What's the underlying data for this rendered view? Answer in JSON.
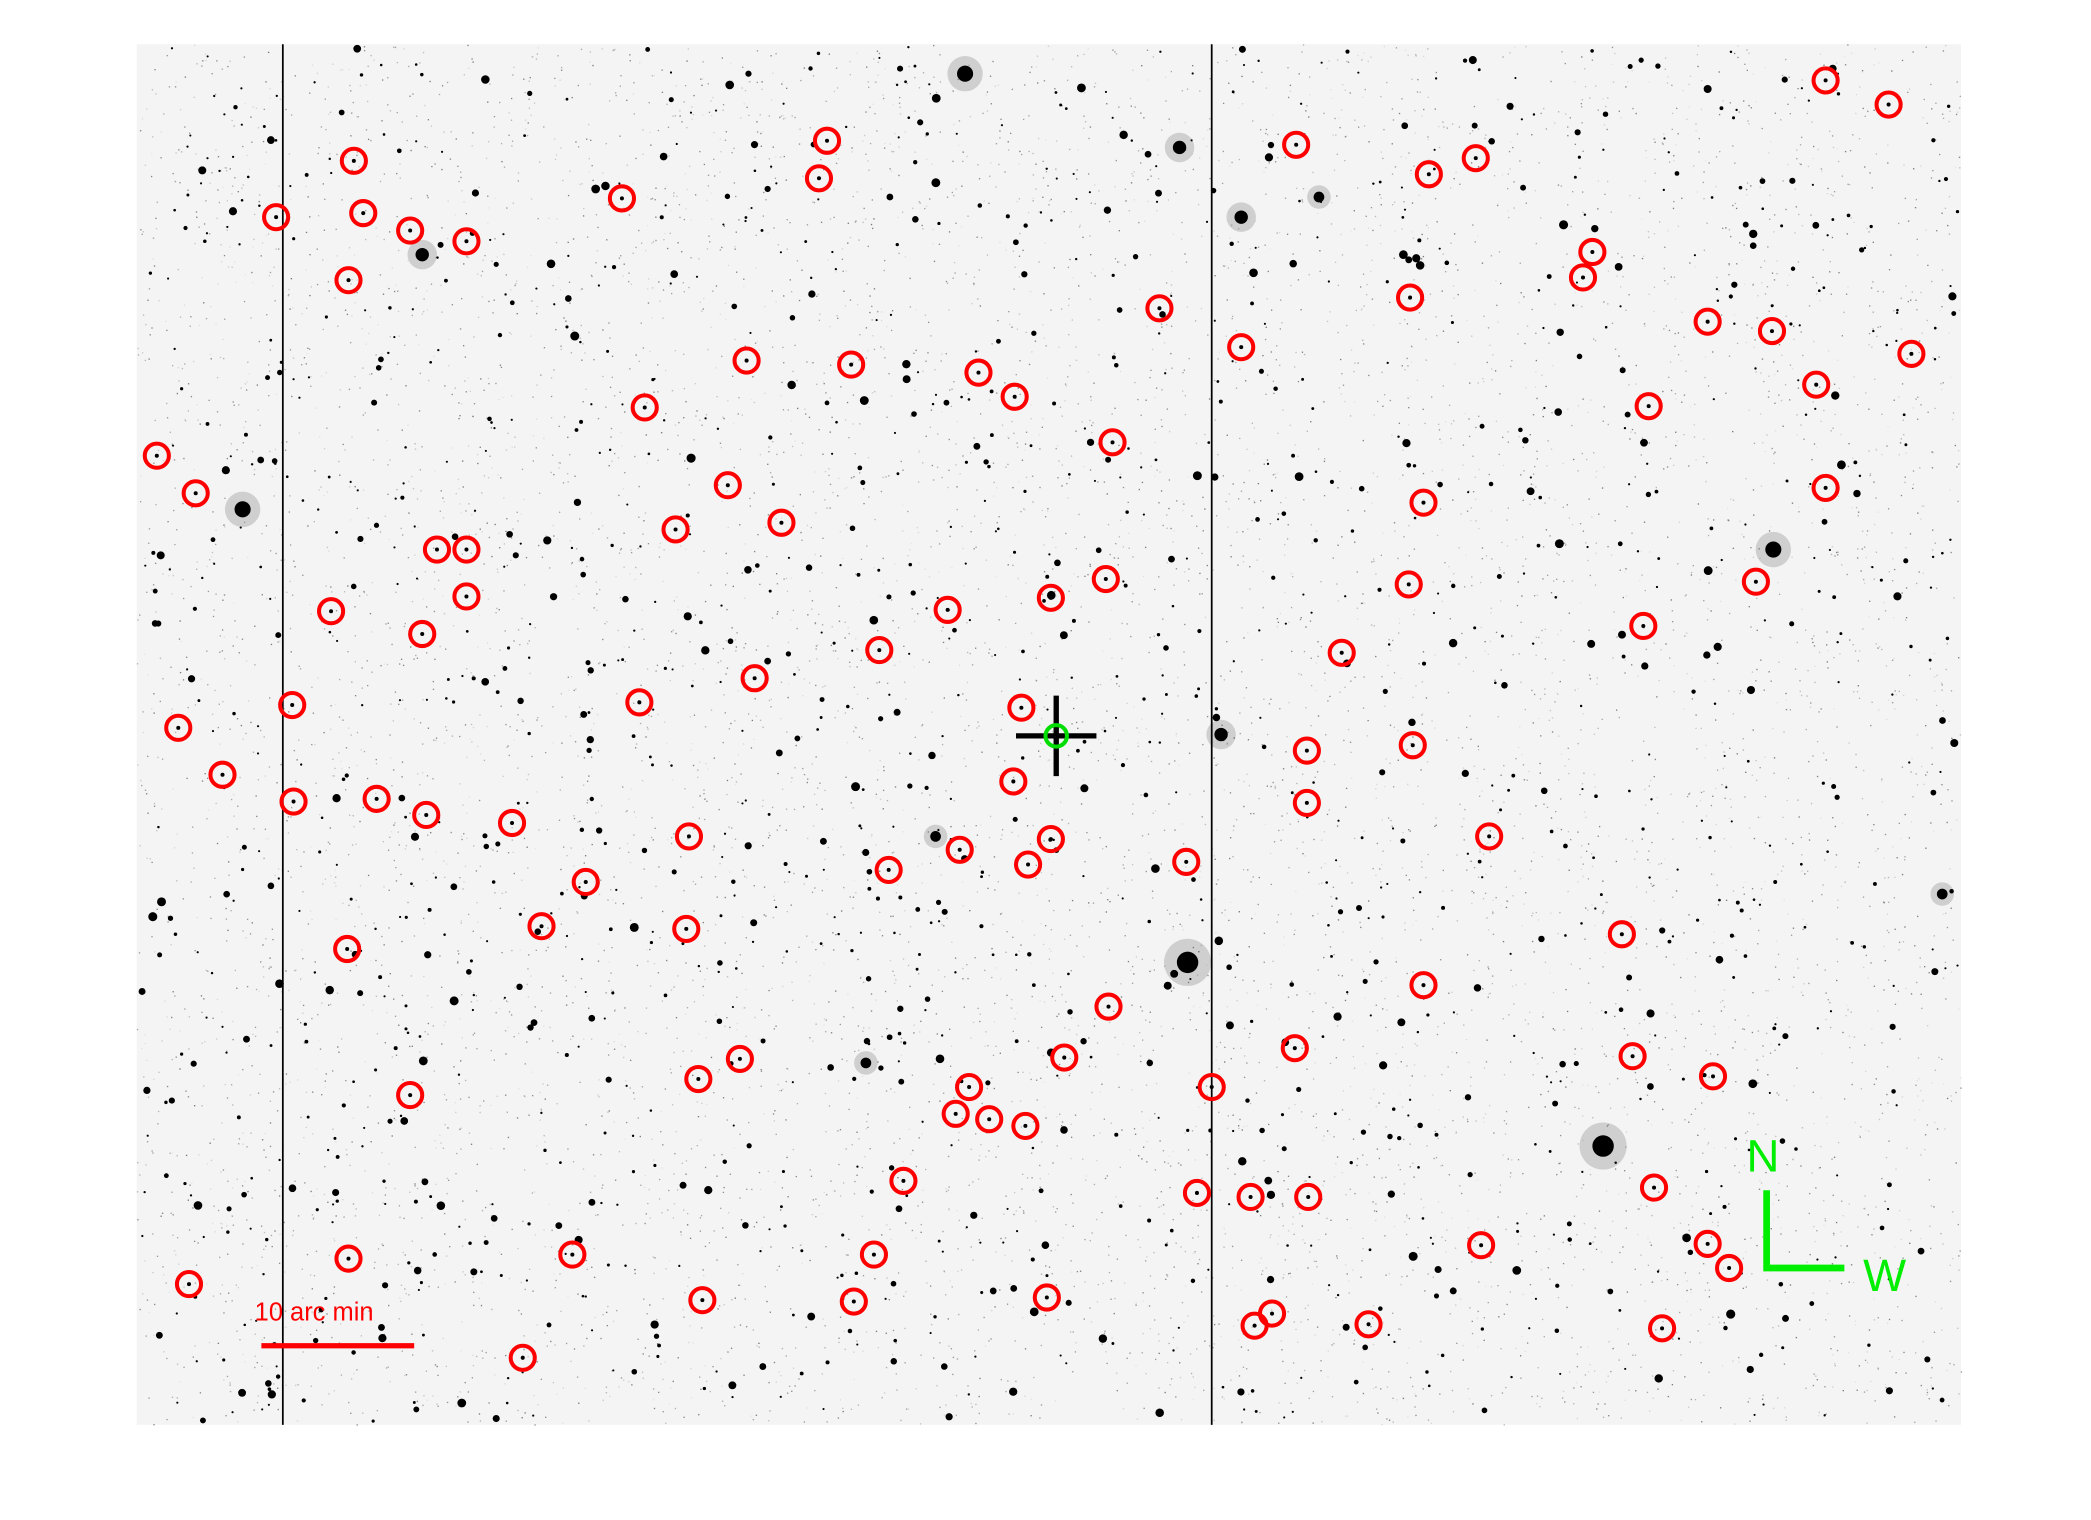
{
  "scale_bar": {
    "label": "10 arc min",
    "color": "#ff0000"
  },
  "compass": {
    "north": "N",
    "west": "W",
    "color": "#00ee00"
  },
  "colors": {
    "reference_circle": "#ff0000",
    "target_circle": "#00dd00",
    "crosshair": "#000000",
    "background": "#ffffff"
  }
}
